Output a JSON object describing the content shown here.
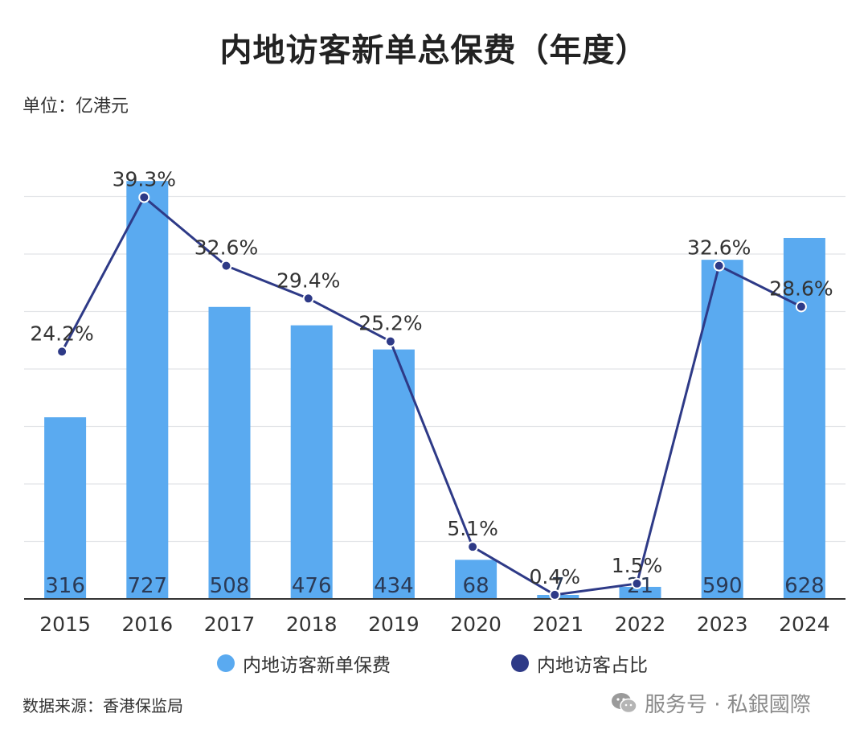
{
  "chart_data": {
    "type": "bar",
    "title": "内地访客新单总保费（年度）",
    "unit": "单位：亿港元",
    "categories": [
      "2015",
      "2016",
      "2017",
      "2018",
      "2019",
      "2020",
      "2021",
      "2022",
      "2023",
      "2024"
    ],
    "series": [
      {
        "name": "内地访客新单保费",
        "type": "bar",
        "values": [
          316,
          727,
          508,
          476,
          434,
          68,
          7,
          21,
          590,
          628
        ],
        "color": "#5aaaf0"
      },
      {
        "name": "内地访客占比",
        "type": "line",
        "values": [
          24.2,
          39.3,
          32.6,
          29.4,
          25.2,
          5.1,
          0.4,
          1.5,
          32.6,
          28.6
        ],
        "labels": [
          "24.2%",
          "39.3%",
          "32.6%",
          "29.4%",
          "25.2%",
          "5.1%",
          "0.4%",
          "1.5%",
          "32.6%",
          "28.6%"
        ],
        "color": "#2e3a87"
      }
    ],
    "bar_labels": [
      "316",
      "727",
      "508",
      "476",
      "434",
      "68",
      "7",
      "21",
      "590",
      "628"
    ],
    "ylim": [
      0,
      800
    ],
    "ylim_secondary": [
      0,
      45
    ],
    "grid": true,
    "legend": "bottom"
  },
  "footer": {
    "source": "数据来源：香港保监局",
    "watermark": "服务号 · 私銀國際"
  },
  "icons": {
    "watermark_icon": "wechat-icon"
  }
}
